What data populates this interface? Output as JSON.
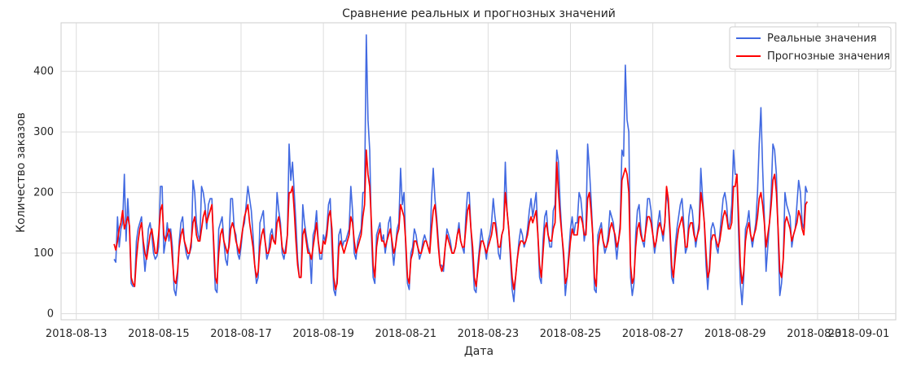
{
  "chart_data": {
    "type": "line",
    "title": "Сравнение реальных и прогнозных значений",
    "xlabel": "Дата",
    "ylabel": "Количество заказов",
    "x_start": "2018-08-13T22:00",
    "x_step_hours": 1,
    "x_ticks": [
      "2018-08-13",
      "2018-08-15",
      "2018-08-17",
      "2018-08-19",
      "2018-08-21",
      "2018-08-23",
      "2018-08-25",
      "2018-08-27",
      "2018-08-29",
      "2018-08-31",
      "2018-09-01"
    ],
    "xlim": [
      "2018-08-13",
      "2018-09-01"
    ],
    "y_ticks": [
      0,
      100,
      200,
      300,
      400
    ],
    "ylim": [
      -10,
      480
    ],
    "grid": true,
    "legend_position": "top-right",
    "series": [
      {
        "name": "Реальные значения",
        "color": "#4169e1",
        "values": [
          90,
          85,
          160,
          110,
          140,
          150,
          230,
          120,
          190,
          140,
          50,
          45,
          45,
          120,
          140,
          150,
          160,
          110,
          70,
          100,
          140,
          150,
          130,
          100,
          90,
          95,
          110,
          210,
          210,
          100,
          120,
          150,
          120,
          140,
          110,
          40,
          30,
          60,
          120,
          150,
          160,
          120,
          100,
          90,
          100,
          110,
          220,
          200,
          150,
          130,
          120,
          210,
          200,
          180,
          140,
          180,
          190,
          190,
          110,
          40,
          35,
          140,
          150,
          160,
          120,
          90,
          80,
          120,
          190,
          190,
          140,
          130,
          100,
          90,
          110,
          140,
          150,
          180,
          210,
          190,
          170,
          130,
          80,
          50,
          60,
          150,
          160,
          170,
          120,
          90,
          100,
          130,
          140,
          120,
          120,
          200,
          170,
          150,
          100,
          90,
          110,
          130,
          280,
          220,
          250,
          200,
          150,
          90,
          60,
          60,
          180,
          150,
          130,
          110,
          100,
          50,
          130,
          140,
          170,
          120,
          90,
          90,
          130,
          120,
          140,
          180,
          190,
          110,
          40,
          30,
          60,
          130,
          140,
          110,
          120,
          120,
          130,
          140,
          210,
          170,
          100,
          90,
          120,
          130,
          140,
          200,
          200,
          460,
          320,
          270,
          130,
          60,
          50,
          130,
          140,
          150,
          120,
          130,
          100,
          120,
          150,
          160,
          110,
          80,
          110,
          140,
          150,
          240,
          180,
          200,
          110,
          50,
          40,
          100,
          110,
          140,
          130,
          110,
          90,
          100,
          120,
          130,
          120,
          110,
          100,
          190,
          240,
          190,
          160,
          120,
          80,
          80,
          70,
          110,
          140,
          130,
          120,
          100,
          100,
          110,
          130,
          150,
          120,
          110,
          100,
          160,
          200,
          200,
          140,
          90,
          40,
          35,
          80,
          110,
          140,
          120,
          110,
          90,
          120,
          130,
          150,
          190,
          160,
          140,
          100,
          90,
          130,
          140,
          250,
          170,
          140,
          90,
          40,
          20,
          60,
          90,
          120,
          140,
          130,
          110,
          120,
          140,
          170,
          190,
          160,
          180,
          200,
          130,
          60,
          50,
          120,
          160,
          170,
          130,
          110,
          110,
          170,
          180,
          270,
          250,
          180,
          130,
          90,
          30,
          60,
          100,
          140,
          160,
          130,
          150,
          150,
          200,
          190,
          160,
          120,
          140,
          280,
          240,
          190,
          130,
          40,
          35,
          130,
          140,
          150,
          120,
          100,
          110,
          130,
          170,
          160,
          150,
          120,
          90,
          120,
          150,
          270,
          260,
          410,
          320,
          300,
          60,
          30,
          50,
          130,
          170,
          180,
          140,
          120,
          110,
          150,
          190,
          190,
          170,
          130,
          100,
          120,
          150,
          170,
          140,
          120,
          150,
          200,
          180,
          130,
          60,
          50,
          110,
          140,
          160,
          180,
          190,
          150,
          100,
          110,
          160,
          180,
          170,
          140,
          110,
          130,
          150,
          240,
          190,
          150,
          80,
          40,
          80,
          140,
          150,
          140,
          110,
          100,
          130,
          160,
          190,
          200,
          180,
          140,
          150,
          180,
          270,
          230,
          230,
          130,
          50,
          15,
          60,
          140,
          150,
          170,
          130,
          110,
          130,
          150,
          200,
          280,
          340,
          240,
          160,
          70,
          110,
          150,
          200,
          280,
          270,
          230,
          130,
          30,
          50,
          90,
          200,
          180,
          170,
          160,
          110,
          130,
          140,
          180,
          220,
          200,
          150,
          140,
          210,
          200
        ]
      },
      {
        "name": "Прогнозные значения",
        "color": "#ff0000",
        "values": [
          115,
          105,
          120,
          140,
          150,
          170,
          140,
          150,
          160,
          145,
          60,
          50,
          45,
          90,
          120,
          140,
          150,
          120,
          100,
          90,
          110,
          130,
          140,
          120,
          100,
          100,
          130,
          170,
          180,
          130,
          120,
          130,
          140,
          130,
          90,
          55,
          50,
          70,
          110,
          130,
          140,
          120,
          110,
          100,
          100,
          120,
          150,
          160,
          130,
          120,
          120,
          140,
          160,
          170,
          150,
          160,
          170,
          180,
          120,
          60,
          50,
          100,
          130,
          140,
          120,
          110,
          100,
          110,
          140,
          150,
          140,
          120,
          110,
          100,
          120,
          140,
          160,
          170,
          180,
          150,
          130,
          110,
          80,
          60,
          70,
          110,
          130,
          140,
          120,
          100,
          100,
          110,
          130,
          120,
          115,
          150,
          160,
          140,
          110,
          100,
          100,
          130,
          200,
          200,
          210,
          170,
          120,
          80,
          60,
          60,
          130,
          140,
          120,
          100,
          100,
          90,
          110,
          130,
          150,
          120,
          100,
          100,
          120,
          115,
          130,
          160,
          170,
          140,
          60,
          40,
          50,
          110,
          120,
          110,
          100,
          110,
          120,
          130,
          160,
          150,
          120,
          100,
          110,
          120,
          130,
          160,
          180,
          270,
          230,
          210,
          150,
          80,
          60,
          110,
          130,
          140,
          120,
          120,
          110,
          120,
          130,
          140,
          120,
          100,
          110,
          130,
          140,
          180,
          170,
          160,
          120,
          60,
          50,
          90,
          100,
          120,
          120,
          110,
          100,
          100,
          110,
          120,
          120,
          110,
          100,
          140,
          170,
          180,
          150,
          110,
          80,
          70,
          80,
          110,
          130,
          120,
          110,
          100,
          100,
          110,
          130,
          140,
          120,
          110,
          110,
          140,
          170,
          180,
          140,
          110,
          60,
          45,
          70,
          100,
          120,
          120,
          110,
          100,
          110,
          120,
          130,
          150,
          150,
          130,
          110,
          110,
          130,
          140,
          200,
          170,
          140,
          100,
          60,
          40,
          60,
          90,
          110,
          120,
          120,
          115,
          120,
          130,
          150,
          160,
          150,
          160,
          170,
          130,
          80,
          60,
          100,
          140,
          150,
          130,
          120,
          120,
          140,
          150,
          250,
          200,
          160,
          130,
          100,
          50,
          60,
          90,
          120,
          140,
          130,
          130,
          130,
          160,
          160,
          150,
          130,
          130,
          190,
          200,
          170,
          130,
          60,
          45,
          110,
          130,
          140,
          120,
          110,
          110,
          120,
          140,
          150,
          140,
          130,
          110,
          120,
          140,
          220,
          230,
          240,
          230,
          200,
          80,
          50,
          60,
          110,
          140,
          150,
          130,
          120,
          120,
          140,
          160,
          160,
          150,
          130,
          110,
          120,
          140,
          150,
          140,
          130,
          150,
          210,
          190,
          140,
          80,
          60,
          90,
          120,
          140,
          150,
          160,
          140,
          110,
          110,
          140,
          150,
          150,
          130,
          120,
          130,
          140,
          200,
          180,
          150,
          100,
          60,
          70,
          120,
          130,
          130,
          120,
          110,
          120,
          140,
          160,
          170,
          160,
          140,
          140,
          150,
          210,
          210,
          230,
          160,
          80,
          50,
          70,
          120,
          140,
          150,
          130,
          120,
          130,
          140,
          160,
          190,
          200,
          180,
          150,
          110,
          130,
          150,
          180,
          220,
          230,
          200,
          140,
          70,
          60,
          90,
          150,
          160,
          150,
          140,
          120,
          130,
          140,
          150,
          170,
          160,
          140,
          130,
          180,
          185
        ]
      }
    ]
  }
}
